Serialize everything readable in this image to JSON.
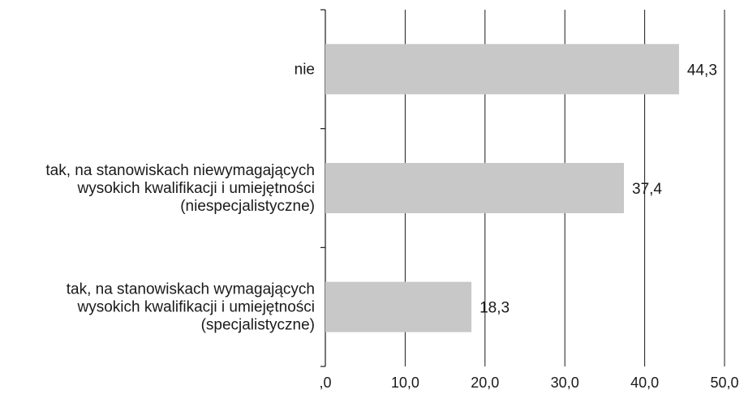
{
  "chart_data": {
    "type": "bar",
    "orientation": "horizontal",
    "categories": [
      [
        "nie"
      ],
      [
        "tak, na stanowiskach niewymagających",
        "wysokich kwalifikacji i umiejętności",
        "(niespecjalistyczne)"
      ],
      [
        "tak, na stanowiskach wymagających",
        "wysokich kwalifikacji i umiejętności",
        "(specjalistyczne)"
      ]
    ],
    "values": [
      44.3,
      37.4,
      18.3
    ],
    "value_labels": [
      "44,3",
      "37,4",
      "18,3"
    ],
    "xlim": [
      0,
      50
    ],
    "x_ticks": [
      0,
      10,
      20,
      30,
      40,
      50
    ],
    "x_tick_labels": [
      ",0",
      "10,0",
      "20,0",
      "30,0",
      "40,0",
      "50,0"
    ],
    "grid": "vertical",
    "bar_color": "#c8c8c8",
    "axis_color": "#1a1a1a",
    "title": "",
    "xlabel": "",
    "ylabel": ""
  }
}
